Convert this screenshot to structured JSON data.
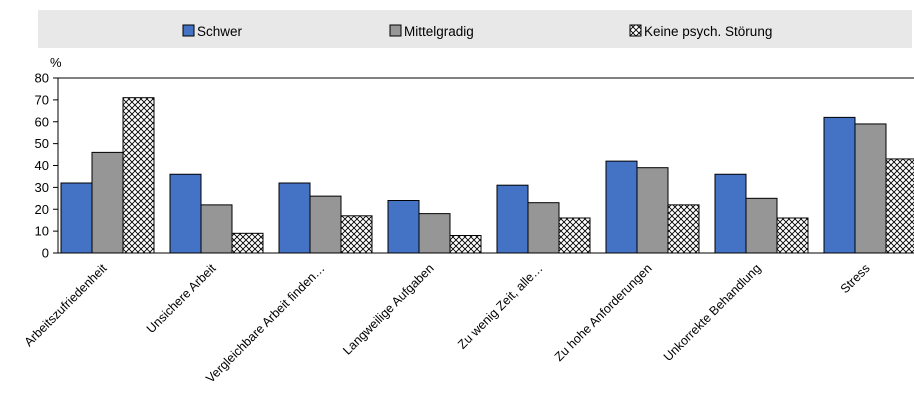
{
  "chart_data": {
    "type": "bar",
    "ylabel": "%",
    "ylim": [
      0,
      80
    ],
    "yticks": [
      0,
      10,
      20,
      30,
      40,
      50,
      60,
      70,
      80
    ],
    "legend_position": "top",
    "grid": false,
    "categories": [
      "Arbeitszufriedenheit",
      "Unsichere Arbeit",
      "Vergleichbare Arbeit finden…",
      "Langweilige Aufgaben",
      "Zu wenig Zeit, alle…",
      "Zu hohe Anforderungen",
      "Unkorrekte Behandlung",
      "Stress"
    ],
    "series": [
      {
        "name": "Schwer",
        "color": "#4472c4",
        "values": [
          32,
          36,
          32,
          24,
          31,
          42,
          36,
          62
        ]
      },
      {
        "name": "Mittelgradig",
        "color": "#969696",
        "values": [
          46,
          22,
          26,
          18,
          23,
          39,
          25,
          59
        ]
      },
      {
        "name": "Keine psych. Störung",
        "color": "#ffffff",
        "pattern": "crosshatch",
        "values": [
          71,
          9,
          17,
          8,
          16,
          22,
          16,
          43
        ]
      }
    ]
  }
}
